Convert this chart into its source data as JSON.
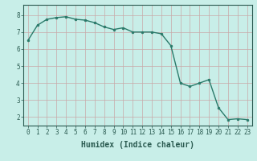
{
  "x": [
    0,
    1,
    2,
    3,
    4,
    5,
    6,
    7,
    8,
    9,
    10,
    11,
    12,
    13,
    14,
    15,
    16,
    17,
    18,
    19,
    20,
    21,
    22,
    23
  ],
  "y": [
    6.5,
    7.4,
    7.75,
    7.85,
    7.9,
    7.75,
    7.7,
    7.55,
    7.3,
    7.15,
    7.25,
    7.0,
    7.0,
    7.0,
    6.9,
    6.2,
    4.0,
    3.8,
    4.0,
    4.2,
    2.55,
    1.85,
    1.9,
    1.85
  ],
  "line_color": "#2a7a6a",
  "marker": "o",
  "marker_size": 2.0,
  "background_color": "#c8eee8",
  "grid_color": "#b0d8d0",
  "grid_color_minor": "#d8c8c8",
  "xlabel": "Humidex (Indice chaleur)",
  "xlim": [
    -0.5,
    23.5
  ],
  "ylim": [
    1.5,
    8.6
  ],
  "yticks": [
    2,
    3,
    4,
    5,
    6,
    7,
    8
  ],
  "xticks": [
    0,
    1,
    2,
    3,
    4,
    5,
    6,
    7,
    8,
    9,
    10,
    11,
    12,
    13,
    14,
    15,
    16,
    17,
    18,
    19,
    20,
    21,
    22,
    23
  ],
  "tick_color": "#2a5a50",
  "axis_color": "#2a5a50",
  "label_fontsize": 7,
  "tick_fontsize": 5.5,
  "line_width": 1.0
}
